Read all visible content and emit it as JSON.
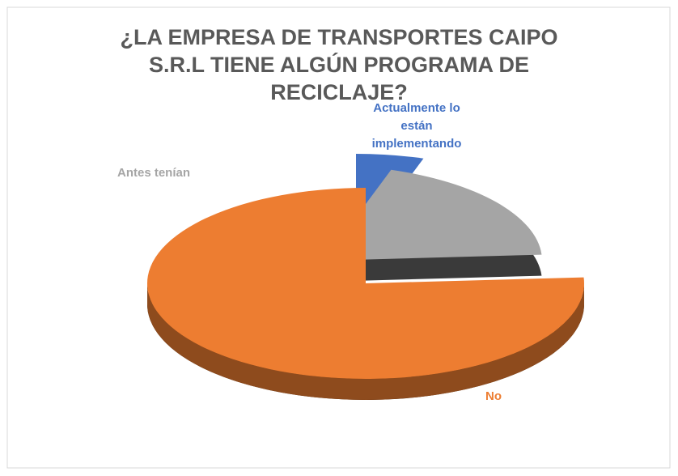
{
  "chart_data": {
    "type": "pie3d",
    "title": "¿LA EMPRESA DE TRANSPORTES CAIPO S.R.L TIENE ALGÚN PROGRAMA DE RECICLAJE?",
    "categories": [
      "Actualmente lo están implementando",
      "Antes tenían",
      "No"
    ],
    "values": [
      5,
      19,
      76
    ],
    "colors": [
      "#4472c4",
      "#a5a5a5",
      "#ed7d31"
    ]
  }
}
